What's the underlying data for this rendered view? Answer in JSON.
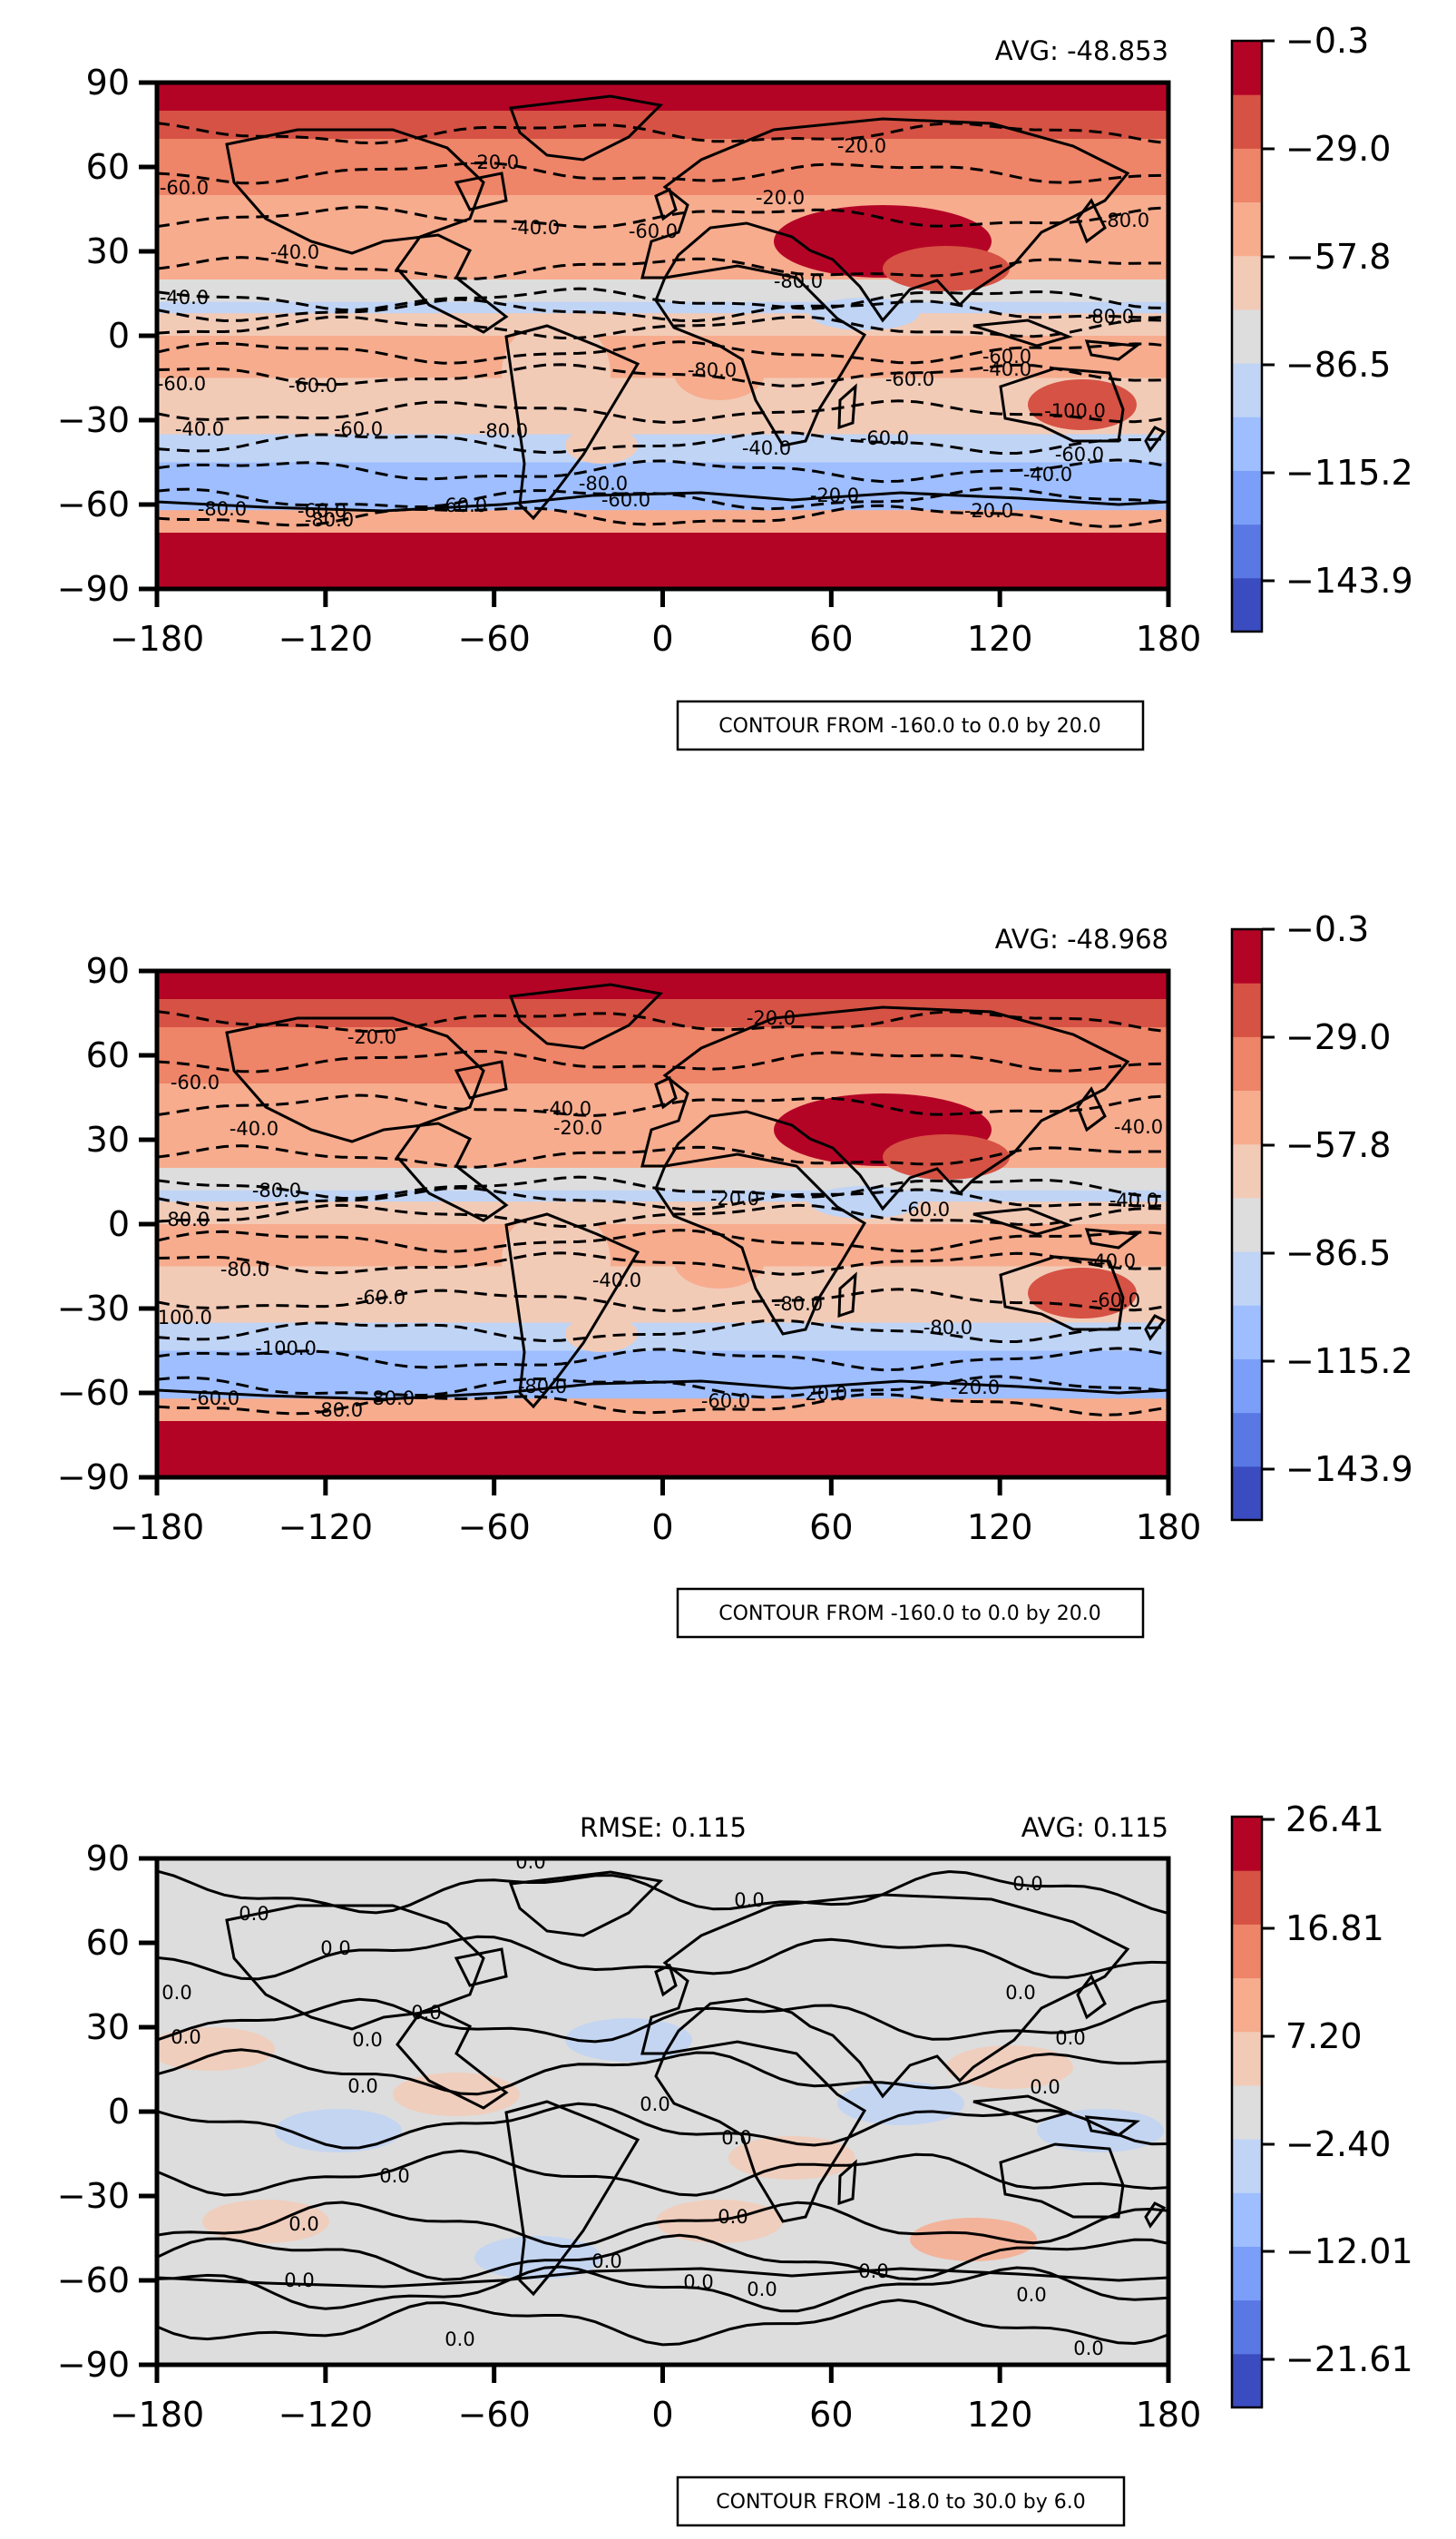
{
  "colors": {
    "ramp": [
      "#3b4cc0",
      "#5a78e4",
      "#7b9ff9",
      "#9ebeff",
      "#c0d4f5",
      "#dddddd",
      "#f2cbb7",
      "#f7ac8e",
      "#ee8468",
      "#d65244",
      "#b40426"
    ],
    "land_outline": "#000000",
    "contour": "#000000"
  },
  "chart_data": [
    {
      "type": "heatmap",
      "subtype": "filled-contour map with dashed contour lines and coastlines",
      "header_right": "AVG: -48.853",
      "note": "CONTOUR FROM -160.0 to 0.0 by 20.0",
      "xlim": [
        -180,
        180
      ],
      "ylim": [
        -90,
        90
      ],
      "xticks": [
        "−180",
        "−120",
        "−60",
        "0",
        "60",
        "120",
        "180"
      ],
      "yticks": [
        "90",
        "60",
        "30",
        "0",
        "−30",
        "−60",
        "−90"
      ],
      "colorbar": {
        "range": [
          -158.3,
          -0.3
        ],
        "ticks": [
          "−0.3",
          "−29.0",
          "−57.8",
          "−86.5",
          "−115.2",
          "−143.9"
        ]
      },
      "zonal_profile": {
        "lat": [
          90,
          80,
          70,
          60,
          50,
          40,
          30,
          20,
          12,
          8,
          0,
          -8,
          -15,
          -25,
          -35,
          -45,
          -55,
          -62,
          -70,
          -80,
          -90
        ],
        "value": [
          -2,
          -5,
          -25,
          -35,
          -48,
          -55,
          -45,
          -55,
          -90,
          -95,
          -40,
          -55,
          -60,
          -62,
          -80,
          -105,
          -110,
          -95,
          -5,
          -3,
          -2
        ]
      },
      "contour_labels": [
        "-20.0",
        "-20.0",
        "-20.0",
        "-20.0",
        "-60.0",
        "-40.0",
        "-40.0",
        "-60.0",
        "-40.0",
        "-80.0",
        "-80.0",
        "-80.0",
        "-60.0",
        "-80.0",
        "-60.0",
        "-40.0",
        "-60.0",
        "-40.0",
        "-60.0",
        "-80.0",
        "-60.0",
        "-40.0",
        "-60.0",
        "-100.0",
        "-80.0",
        "-80.0",
        "-60.0",
        "-60.0",
        "-20.0",
        "-20.0",
        "-60.0",
        "-80.0",
        "-60.0",
        "-40.0"
      ]
    },
    {
      "type": "heatmap",
      "subtype": "filled-contour map with dashed contour lines and coastlines",
      "header_right": "AVG: -48.968",
      "note": "CONTOUR FROM -160.0 to 0.0 by 20.0",
      "xlim": [
        -180,
        180
      ],
      "ylim": [
        -90,
        90
      ],
      "xticks": [
        "−180",
        "−120",
        "−60",
        "0",
        "60",
        "120",
        "180"
      ],
      "yticks": [
        "90",
        "60",
        "30",
        "0",
        "−30",
        "−60",
        "−90"
      ],
      "colorbar": {
        "range": [
          -158.3,
          -0.3
        ],
        "ticks": [
          "−0.3",
          "−29.0",
          "−57.8",
          "−86.5",
          "−115.2",
          "−143.9"
        ]
      },
      "zonal_profile": {
        "lat": [
          90,
          80,
          70,
          60,
          50,
          40,
          30,
          20,
          12,
          8,
          0,
          -8,
          -15,
          -25,
          -35,
          -45,
          -55,
          -62,
          -70,
          -80,
          -90
        ],
        "value": [
          -2,
          -5,
          -25,
          -35,
          -48,
          -55,
          -45,
          -55,
          -90,
          -95,
          -40,
          -55,
          -60,
          -62,
          -80,
          -105,
          -110,
          -95,
          -5,
          -3,
          -2
        ]
      },
      "contour_labels": [
        "-20.0",
        "-20.0",
        "-60.0",
        "-40.0",
        "-40.0",
        "-20.0",
        "-40.0",
        "-80.0",
        "-20.0",
        "-80.0",
        "-40.0",
        "-60.0",
        "-80.0",
        "-60.0",
        "-40.0",
        "-80.0",
        "-80.0",
        "-60.0",
        "-100.0",
        "-100.0",
        "-60.0",
        "-80.0",
        "-80.0",
        "-20.0",
        "-20.0",
        "-80.0",
        "-60.0",
        "-40.0"
      ]
    },
    {
      "type": "heatmap",
      "subtype": "filled-contour difference map with contour lines and coastlines",
      "header_center": "RMSE: 0.115",
      "header_right": "AVG: 0.115",
      "note": "CONTOUR FROM -18.0 to 30.0 by 6.0",
      "xlim": [
        -180,
        180
      ],
      "ylim": [
        -90,
        90
      ],
      "xticks": [
        "−180",
        "−120",
        "−60",
        "0",
        "60",
        "120",
        "180"
      ],
      "yticks": [
        "90",
        "60",
        "30",
        "0",
        "−30",
        "−60",
        "−90"
      ],
      "colorbar": {
        "range": [
          -26.4,
          26.4
        ],
        "ticks": [
          "26.41",
          "16.81",
          "7.20",
          "−2.40",
          "−12.01",
          "−21.61"
        ]
      },
      "zonal_profile": {
        "lat": [
          90,
          60,
          30,
          0,
          -30,
          -60,
          -90
        ],
        "value": [
          0,
          0,
          0,
          0,
          0,
          0,
          0
        ]
      },
      "contour_labels": [
        "0.0",
        "0.0",
        "0.0",
        "0.0",
        "0.0",
        "0.0",
        "0.0",
        "0.0",
        "0.0",
        "0.0",
        "0.0",
        "0.0",
        "0.0",
        "0.0",
        "0.0",
        "0.0",
        "0.0",
        "0.0",
        "0.0",
        "0.0",
        "0.0",
        "0.0",
        "0.0",
        "0.0",
        "0.0",
        "0.0"
      ]
    }
  ]
}
